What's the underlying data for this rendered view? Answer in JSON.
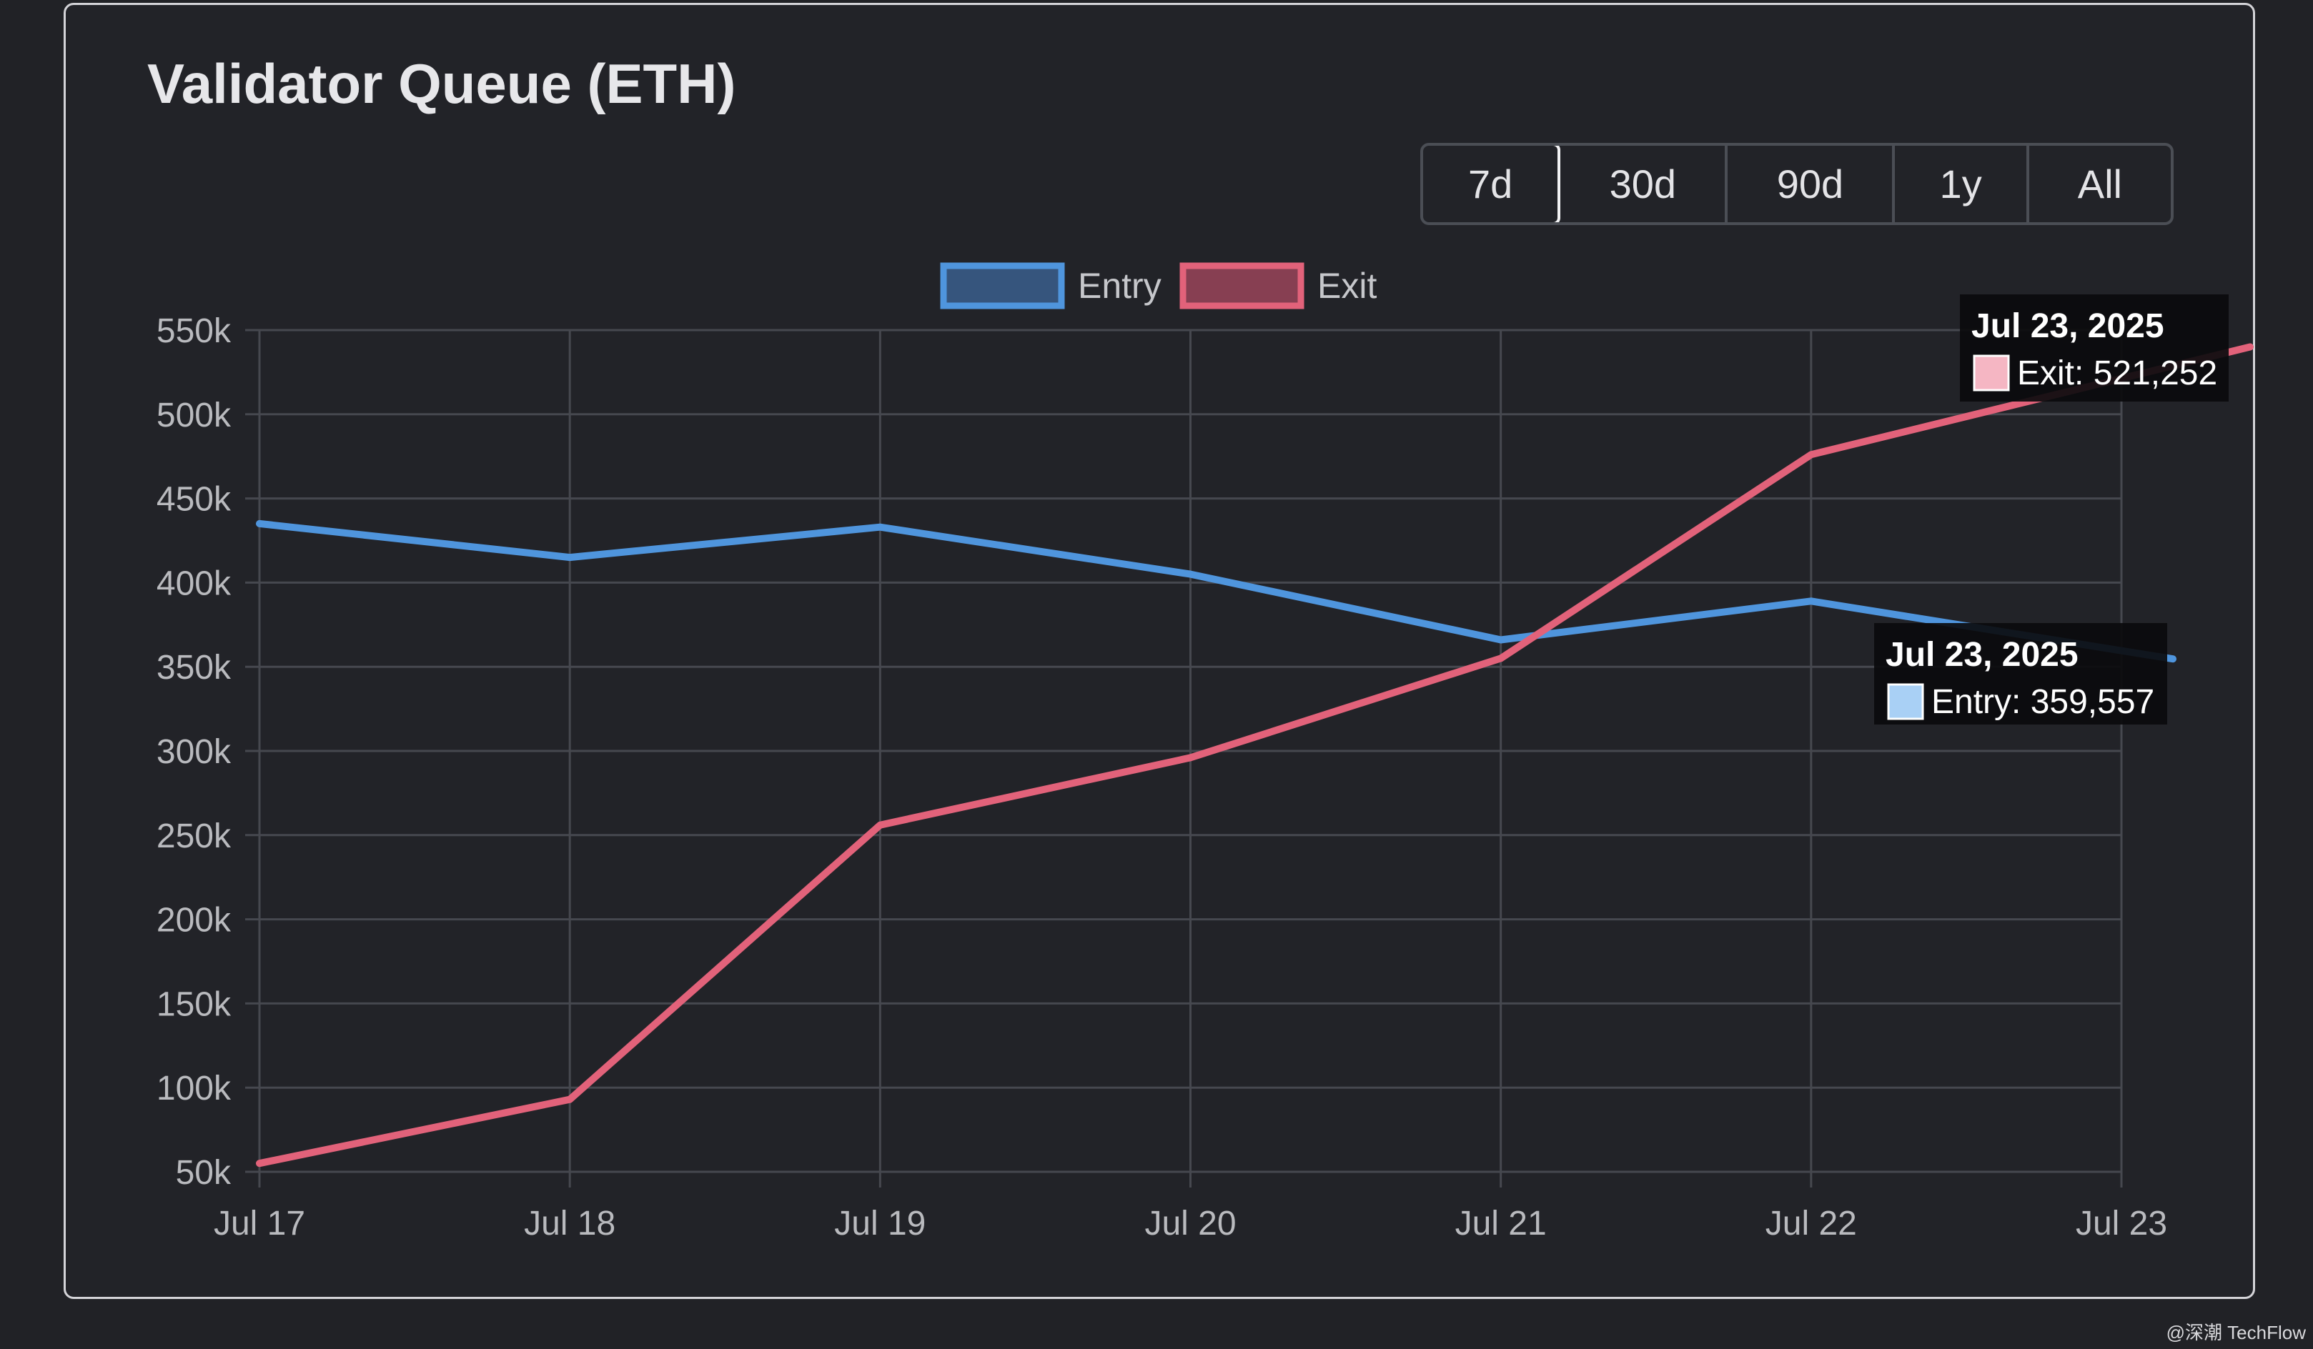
{
  "title": "Validator Queue (ETH)",
  "range_buttons": [
    {
      "label": "7d",
      "active": true
    },
    {
      "label": "30d",
      "active": false
    },
    {
      "label": "90d",
      "active": false
    },
    {
      "label": "1y",
      "active": false
    },
    {
      "label": "All",
      "active": false
    }
  ],
  "watermark": "@深潮 TechFlow",
  "chart_data": {
    "type": "line",
    "x": [
      "Jul 17",
      "Jul 18",
      "Jul 19",
      "Jul 20",
      "Jul 21",
      "Jul 22",
      "Jul 23"
    ],
    "series": [
      {
        "name": "Entry",
        "color": "#4f95dd",
        "fill": "#36557d",
        "values": [
          435000,
          415000,
          433000,
          405000,
          366000,
          389000,
          359557
        ]
      },
      {
        "name": "Exit",
        "color": "#e2627a",
        "fill": "#873f52",
        "values": [
          55000,
          93000,
          256000,
          296000,
          355000,
          476000,
          521252
        ]
      }
    ],
    "yticks": [
      "550k",
      "500k",
      "450k",
      "400k",
      "350k",
      "300k",
      "250k",
      "200k",
      "150k",
      "100k",
      "50k"
    ],
    "ylim": [
      50000,
      550000
    ],
    "grid": true,
    "legend": "top-center",
    "tooltips": [
      {
        "title": "Jul 23, 2025",
        "label": "Exit: 521,252",
        "swatch": "#f5b6c3"
      },
      {
        "title": "Jul 23, 2025",
        "label": "Entry: 359,557",
        "swatch": "#a9d0f5"
      }
    ]
  }
}
